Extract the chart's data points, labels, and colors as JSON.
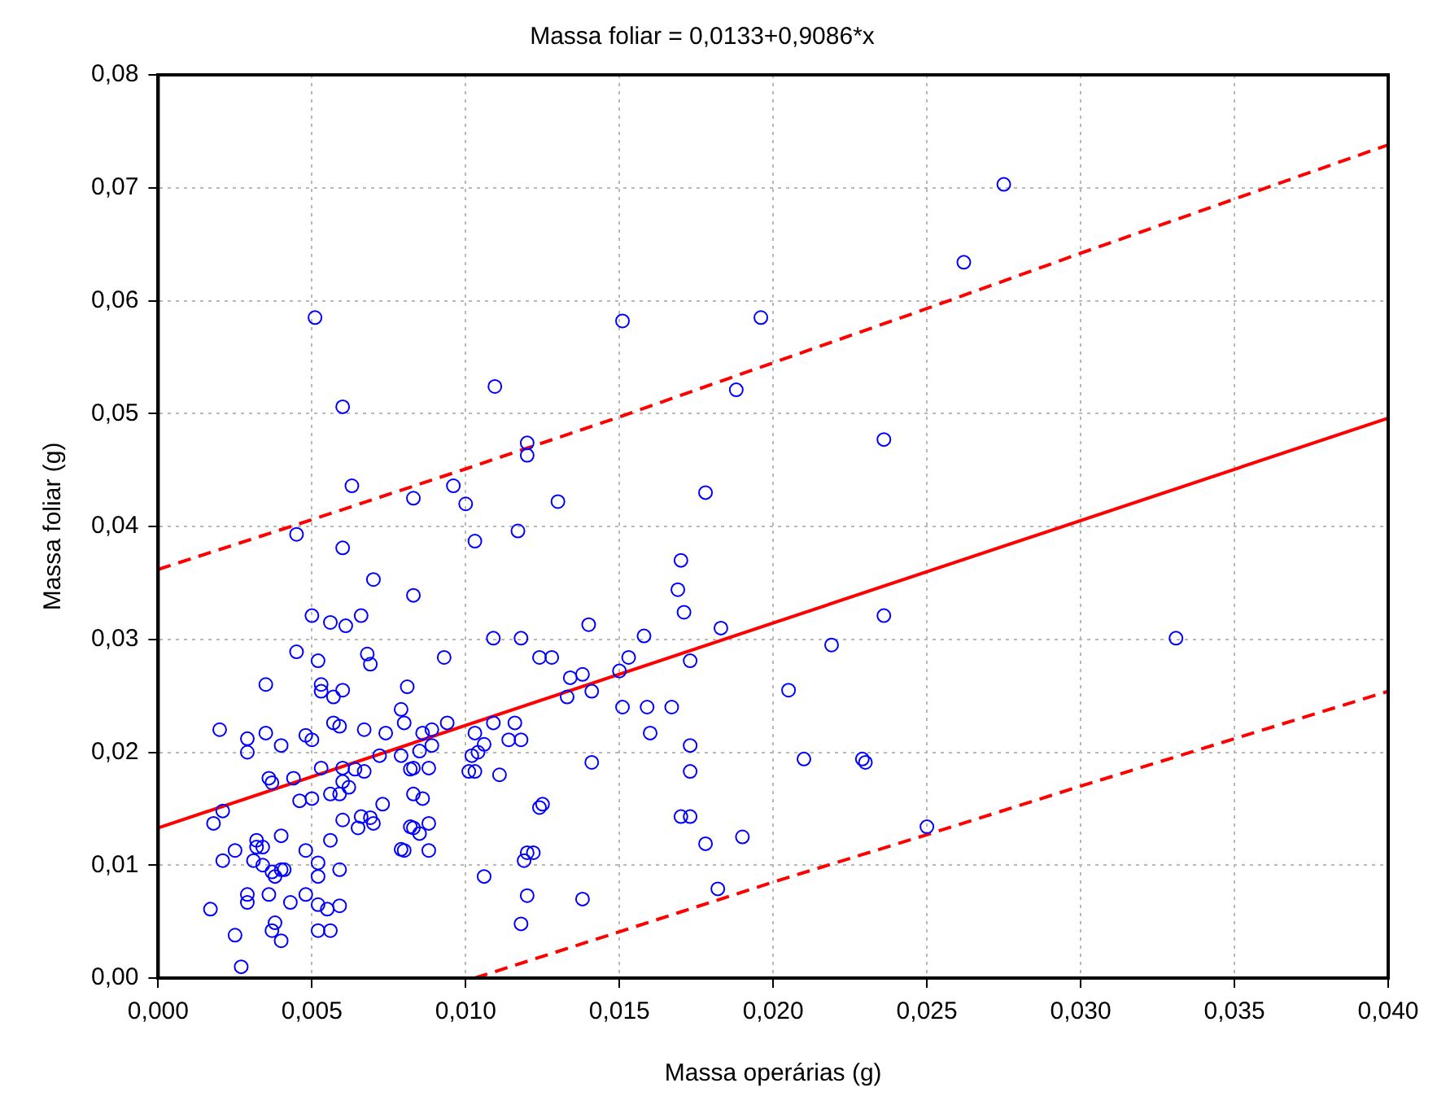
{
  "chart_data": {
    "type": "scatter",
    "title": "Massa foliar = 0,0133+0,9086*x",
    "xlabel": "Massa operárias (g)",
    "ylabel": "Massa foliar (g)",
    "xlim": [
      0,
      0.04
    ],
    "ylim": [
      0,
      0.08
    ],
    "xticks": [
      {
        "value": 0,
        "label": "0,000"
      },
      {
        "value": 0.005,
        "label": "0,005"
      },
      {
        "value": 0.01,
        "label": "0,010"
      },
      {
        "value": 0.015,
        "label": "0,015"
      },
      {
        "value": 0.02,
        "label": "0,020"
      },
      {
        "value": 0.025,
        "label": "0,025"
      },
      {
        "value": 0.03,
        "label": "0,030"
      },
      {
        "value": 0.035,
        "label": "0,035"
      },
      {
        "value": 0.04,
        "label": "0,040"
      }
    ],
    "yticks": [
      {
        "value": 0,
        "label": "0,00"
      },
      {
        "value": 0.01,
        "label": "0,01"
      },
      {
        "value": 0.02,
        "label": "0,02"
      },
      {
        "value": 0.03,
        "label": "0,03"
      },
      {
        "value": 0.04,
        "label": "0,04"
      },
      {
        "value": 0.05,
        "label": "0,05"
      },
      {
        "value": 0.06,
        "label": "0,06"
      },
      {
        "value": 0.07,
        "label": "0,07"
      },
      {
        "value": 0.08,
        "label": "0,08"
      }
    ],
    "grid": true,
    "legend": false,
    "series": [
      {
        "type": "scatter",
        "color": "#0000ff",
        "marker": "circle",
        "x": [
          0.0051,
          0.01095,
          0.0151,
          0.0188,
          0.0196,
          0.0262,
          0.0275,
          0.006,
          0.0063,
          0.0083,
          0.0045,
          0.006,
          0.007,
          0.0083,
          0.005,
          0.0056,
          0.0061,
          0.0066,
          0.0045,
          0.0052,
          0.0068,
          0.0069,
          0.0035,
          0.0053,
          0.0053,
          0.006,
          0.0057,
          0.0081,
          0.0079,
          0.008,
          0.002,
          0.0029,
          0.0029,
          0.0035,
          0.004,
          0.0048,
          0.005,
          0.0057,
          0.0059,
          0.0067,
          0.0074,
          0.0072,
          0.0079,
          0.0082,
          0.0053,
          0.006,
          0.0064,
          0.0067,
          0.0036,
          0.0037,
          0.0044,
          0.006,
          0.0062,
          0.0056,
          0.0059,
          0.0046,
          0.005,
          0.0021,
          0.0018,
          0.006,
          0.0066,
          0.0069,
          0.0065,
          0.007,
          0.0073,
          0.0082,
          0.0079,
          0.004,
          0.0032,
          0.0032,
          0.0034,
          0.0025,
          0.0056,
          0.0048,
          0.0021,
          0.0031,
          0.0034,
          0.0052,
          0.004,
          0.0037,
          0.0038,
          0.0041,
          0.0052,
          0.0059,
          0.0029,
          0.0029,
          0.0036,
          0.0048,
          0.0043,
          0.0052,
          0.0055,
          0.0059,
          0.0017,
          0.0038,
          0.0037,
          0.004,
          0.0025,
          0.0052,
          0.0056,
          0.0027,
          0.012,
          0.012,
          0.0096,
          0.01,
          0.013,
          0.0103,
          0.0117,
          0.017,
          0.0169,
          0.0171,
          0.014,
          0.0158,
          0.0109,
          0.0118,
          0.0093,
          0.0124,
          0.0128,
          0.0153,
          0.0134,
          0.0138,
          0.015,
          0.0173,
          0.0133,
          0.0141,
          0.0151,
          0.0159,
          0.0167,
          0.016,
          0.0173,
          0.0173,
          0.0094,
          0.0086,
          0.0089,
          0.0089,
          0.0085,
          0.0083,
          0.0088,
          0.0083,
          0.0086,
          0.0083,
          0.0085,
          0.0088,
          0.008,
          0.0088,
          0.0103,
          0.0109,
          0.0106,
          0.0102,
          0.0104,
          0.0101,
          0.0103,
          0.0111,
          0.0116,
          0.0114,
          0.0118,
          0.0141,
          0.0124,
          0.0125,
          0.0119,
          0.012,
          0.0122,
          0.0106,
          0.012,
          0.0138,
          0.0118,
          0.017,
          0.0173,
          0.0236,
          0.0178,
          0.0183,
          0.0236,
          0.0219,
          0.0205,
          0.021,
          0.0229,
          0.023,
          0.0178,
          0.019,
          0.025,
          0.0182,
          0.0331
        ],
        "values": [
          0.0585,
          0.0524,
          0.0582,
          0.0521,
          0.0585,
          0.0634,
          0.0703,
          0.0506,
          0.0436,
          0.0425,
          0.0393,
          0.0381,
          0.0353,
          0.0339,
          0.0321,
          0.0315,
          0.0312,
          0.0321,
          0.0289,
          0.0281,
          0.0287,
          0.0278,
          0.026,
          0.026,
          0.0254,
          0.0255,
          0.0249,
          0.0258,
          0.0238,
          0.0226,
          0.022,
          0.0212,
          0.02,
          0.0217,
          0.0206,
          0.0215,
          0.0211,
          0.0226,
          0.0223,
          0.022,
          0.0217,
          0.0197,
          0.0197,
          0.0185,
          0.0186,
          0.0186,
          0.0185,
          0.0183,
          0.0177,
          0.0173,
          0.0177,
          0.0174,
          0.0169,
          0.0163,
          0.0163,
          0.0157,
          0.0159,
          0.0148,
          0.0137,
          0.014,
          0.0143,
          0.0142,
          0.0133,
          0.0137,
          0.0154,
          0.0134,
          0.0114,
          0.0126,
          0.0122,
          0.0116,
          0.0116,
          0.0113,
          0.0122,
          0.0113,
          0.0104,
          0.0104,
          0.01,
          0.0102,
          0.0096,
          0.0094,
          0.009,
          0.0096,
          0.009,
          0.0096,
          0.0074,
          0.0067,
          0.0074,
          0.0074,
          0.0067,
          0.0065,
          0.0061,
          0.0064,
          0.0061,
          0.0049,
          0.0042,
          0.0033,
          0.0038,
          0.0042,
          0.0042,
          0.001,
          0.0474,
          0.0463,
          0.0436,
          0.042,
          0.0422,
          0.0387,
          0.0396,
          0.037,
          0.0344,
          0.0324,
          0.0313,
          0.0303,
          0.0301,
          0.0301,
          0.0284,
          0.0284,
          0.0284,
          0.0284,
          0.0266,
          0.0269,
          0.0272,
          0.0281,
          0.0249,
          0.0254,
          0.024,
          0.024,
          0.024,
          0.0217,
          0.0206,
          0.0183,
          0.0226,
          0.0217,
          0.022,
          0.0206,
          0.0201,
          0.0186,
          0.0186,
          0.0163,
          0.0159,
          0.0133,
          0.0128,
          0.0137,
          0.0113,
          0.0113,
          0.0217,
          0.0226,
          0.0207,
          0.0197,
          0.02,
          0.0183,
          0.0183,
          0.018,
          0.0226,
          0.0211,
          0.0211,
          0.0191,
          0.0151,
          0.0154,
          0.0104,
          0.0111,
          0.0111,
          0.009,
          0.0073,
          0.007,
          0.0048,
          0.0143,
          0.0143,
          0.0477,
          0.043,
          0.031,
          0.0321,
          0.0295,
          0.0255,
          0.0194,
          0.0194,
          0.0191,
          0.0119,
          0.0125,
          0.0134,
          0.0079,
          0.0301
        ]
      },
      {
        "type": "line",
        "color": "#ff0000",
        "line_style": "solid",
        "marker": "none",
        "x": [
          0,
          0.04
        ],
        "values": [
          0.0133,
          0.0496
        ]
      },
      {
        "type": "line",
        "color": "#ff0000",
        "line_style": "dashed",
        "marker": "none",
        "x": [
          0,
          0.005,
          0.01,
          0.015,
          0.02,
          0.025,
          0.03,
          0.035,
          0.04
        ],
        "values": [
          0.0362,
          0.0406,
          0.0451,
          0.0497,
          0.0545,
          0.0593,
          0.0642,
          0.069,
          0.0738
        ]
      },
      {
        "type": "line",
        "color": "#ff0000",
        "line_style": "dashed",
        "marker": "none",
        "x": [
          0.0103,
          0.015,
          0.02,
          0.025,
          0.03,
          0.035,
          0.04
        ],
        "values": [
          0,
          0.0041,
          0.0085,
          0.0127,
          0.017,
          0.0212,
          0.0254
        ]
      }
    ]
  }
}
